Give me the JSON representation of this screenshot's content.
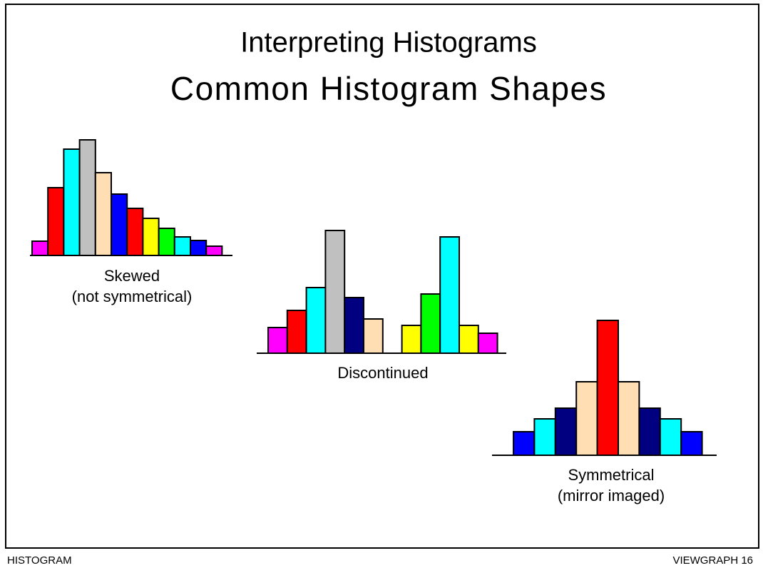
{
  "title": "Interpreting Histograms",
  "subtitle": "Common Histogram Shapes",
  "footer_left": "HISTOGRAM",
  "footer_right": "VIEWGRAPH 16",
  "chart_data": [
    {
      "type": "bar",
      "caption": [
        "Skewed",
        "(not symmetrical)"
      ],
      "values": [
        20,
        95,
        149,
        162,
        116,
        86,
        66,
        52,
        38,
        26,
        21,
        13
      ],
      "colors": [
        "#ff00ff",
        "#ff0000",
        "#00ffff",
        "#c0c0c0",
        "#ffdeb3",
        "#0000ff",
        "#ff0000",
        "#ffff00",
        "#00ff00",
        "#00ffff",
        "#0000ff",
        "#ff00ff"
      ],
      "ylim": [
        0,
        200
      ]
    },
    {
      "type": "bar",
      "caption": [
        "Discontinued"
      ],
      "values": [
        36,
        60,
        92,
        172,
        78,
        48,
        null,
        39,
        83,
        163,
        39,
        28
      ],
      "colors": [
        "#ff00ff",
        "#ff0000",
        "#00ffff",
        "#c0c0c0",
        "#000080",
        "#ffdeb3",
        null,
        "#ffff00",
        "#00ff00",
        "#00ffff",
        "#ffff00",
        "#ff00ff"
      ],
      "ylim": [
        0,
        200
      ]
    },
    {
      "type": "bar",
      "caption": [
        "Symmetrical",
        "(mirror imaged)"
      ],
      "values": [
        33,
        51,
        66,
        103,
        189,
        103,
        66,
        51,
        33
      ],
      "colors": [
        "#0000ff",
        "#00ffff",
        "#000080",
        "#ffdeb3",
        "#ff0000",
        "#ffdeb3",
        "#000080",
        "#00ffff",
        "#0000ff"
      ],
      "ylim": [
        0,
        200
      ]
    }
  ]
}
